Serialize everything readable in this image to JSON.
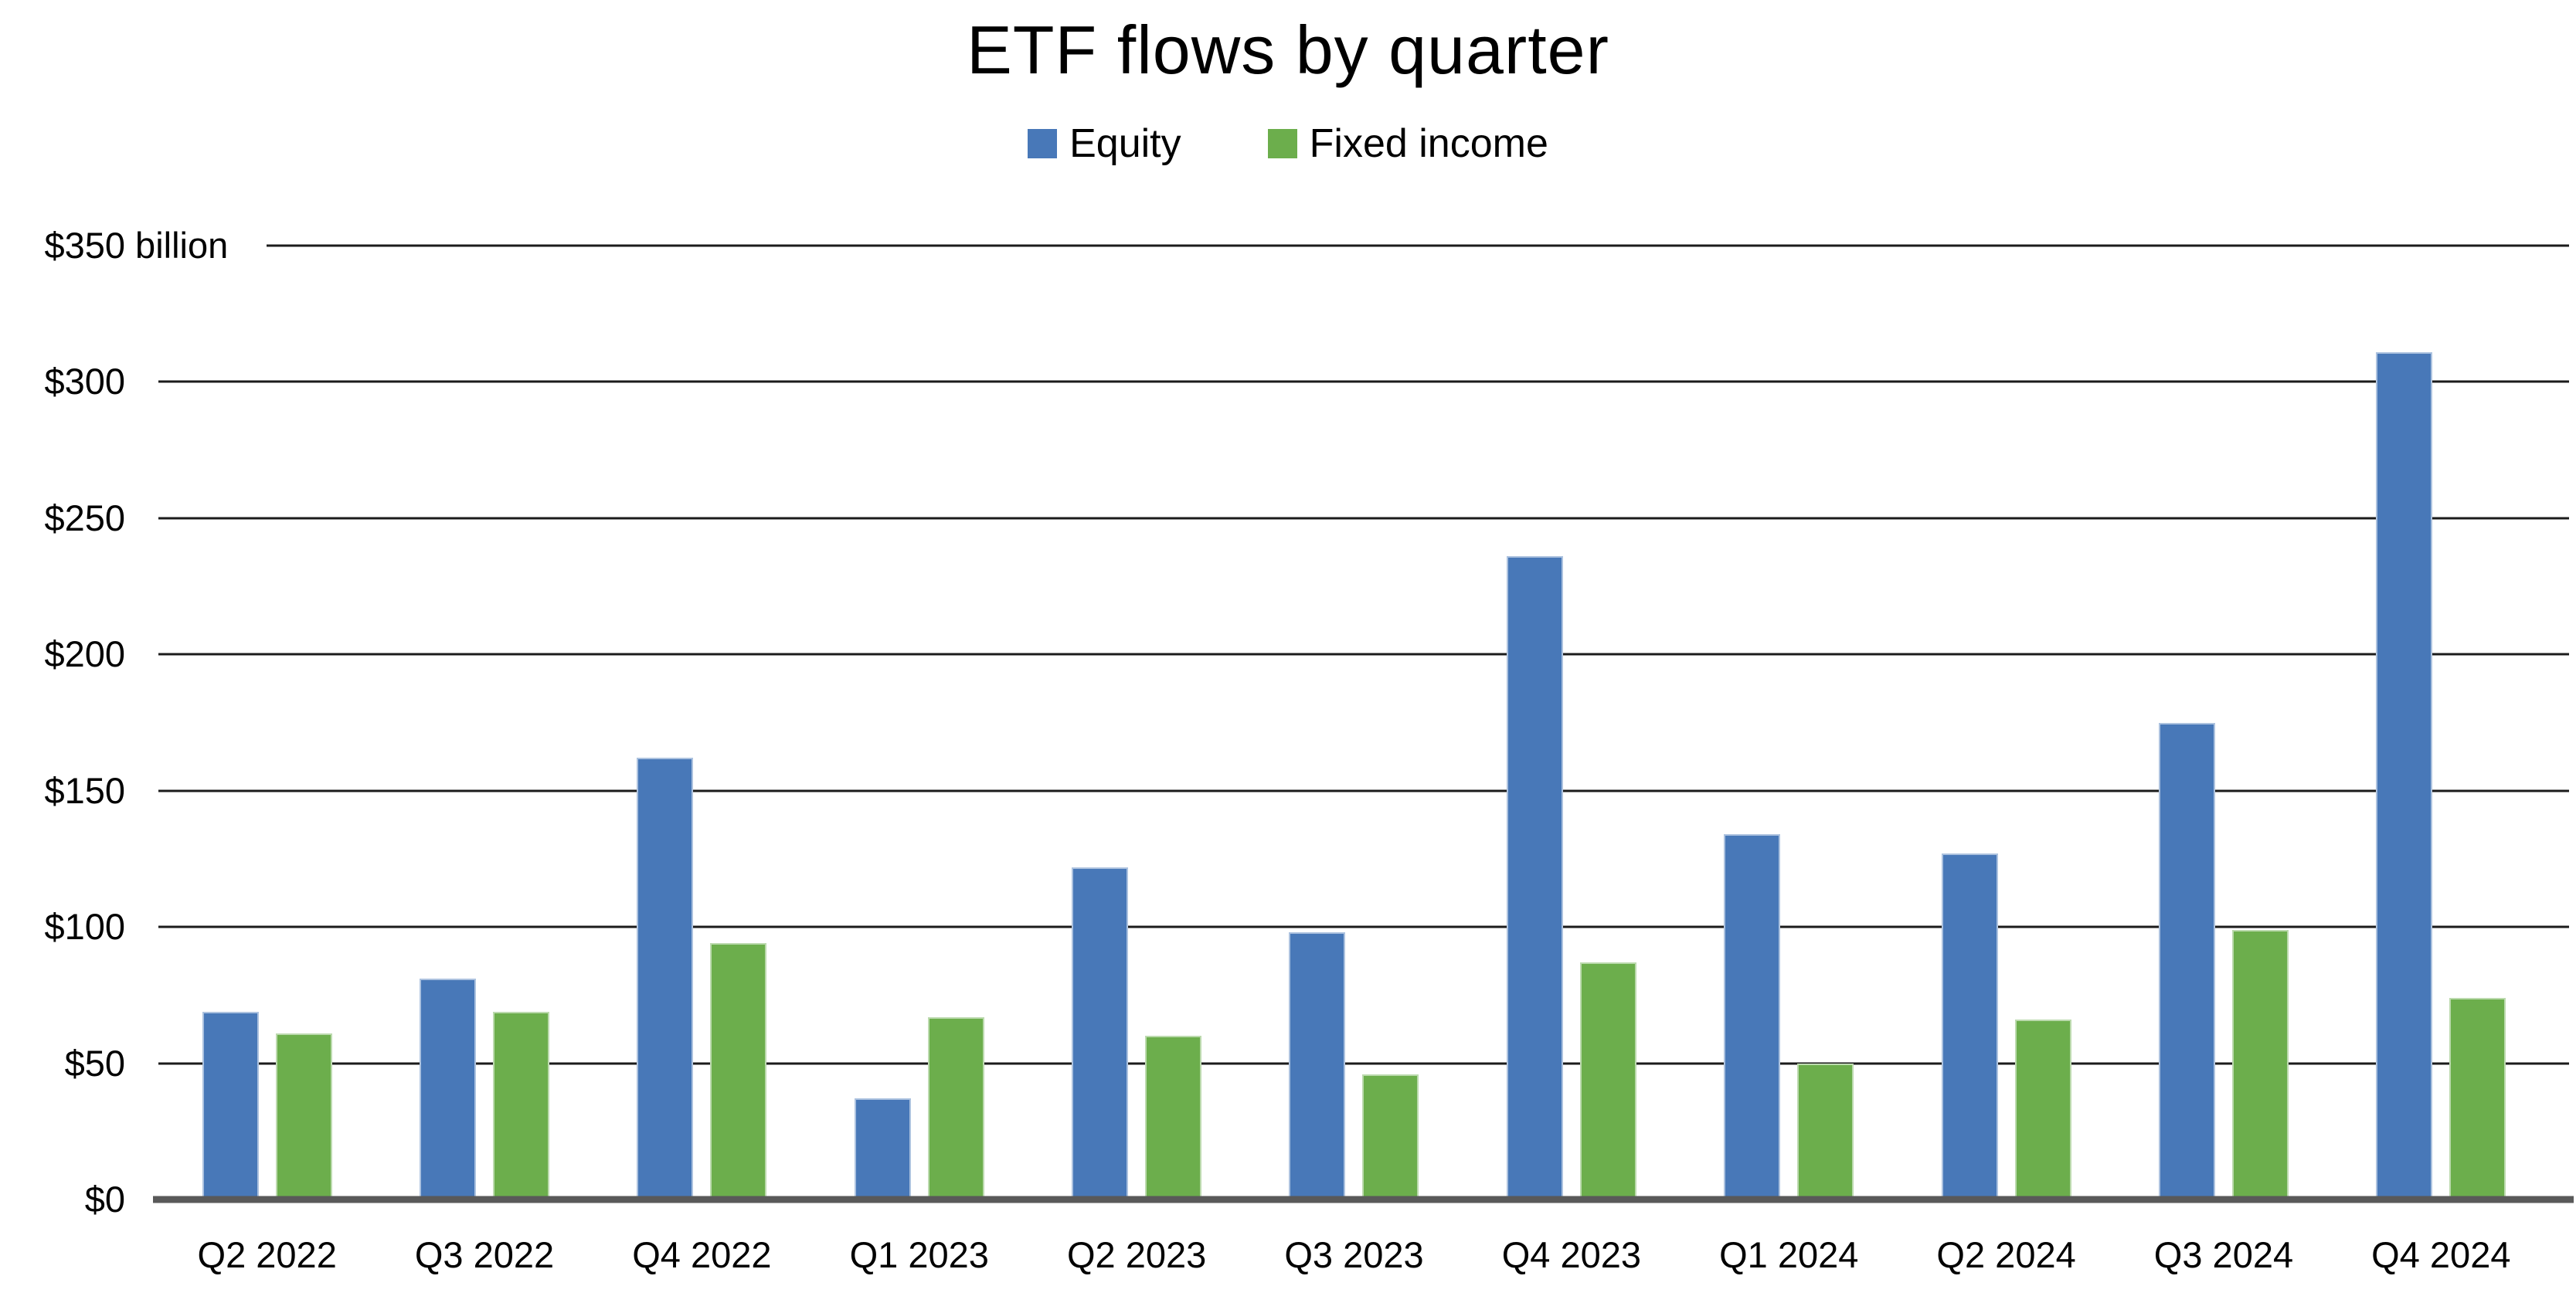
{
  "title": "ETF flows by quarter",
  "legend": {
    "items": [
      {
        "label": "Equity",
        "color": "#4878B8"
      },
      {
        "label": "Fixed income",
        "color": "#6CAE4C"
      }
    ]
  },
  "y_axis": {
    "tick_labels_top_to_bottom": [
      "$350 billion",
      "$300",
      "$250",
      "$200",
      "$150",
      "$100",
      "$50",
      "$0"
    ],
    "unit_suffix_on_top_tick": "billion"
  },
  "colors": {
    "equity": "#4878B8",
    "fixed_income": "#6CAE4C",
    "gridline": "#1b1b1b",
    "baseline": "#595959",
    "background": "#ffffff",
    "text": "#000000"
  },
  "chart_data": {
    "type": "bar",
    "title": "ETF flows by quarter",
    "categories": [
      "Q2 2022",
      "Q3 2022",
      "Q4 2022",
      "Q1 2023",
      "Q2 2023",
      "Q3 2023",
      "Q4 2023",
      "Q1 2024",
      "Q2 2024",
      "Q3 2024",
      "Q4 2024"
    ],
    "series": [
      {
        "name": "Equity",
        "color": "#4878B8",
        "values": [
          69,
          81,
          162,
          37,
          122,
          98,
          236,
          134,
          127,
          175,
          311
        ]
      },
      {
        "name": "Fixed income",
        "color": "#6CAE4C",
        "values": [
          61,
          69,
          94,
          67,
          60,
          46,
          87,
          50,
          66,
          99,
          74
        ]
      }
    ],
    "xlabel": "",
    "ylabel": "$ billion",
    "ylim": [
      0,
      350
    ],
    "ytick_step": 50,
    "grid": "horizontal",
    "legend_position": "top-center"
  }
}
